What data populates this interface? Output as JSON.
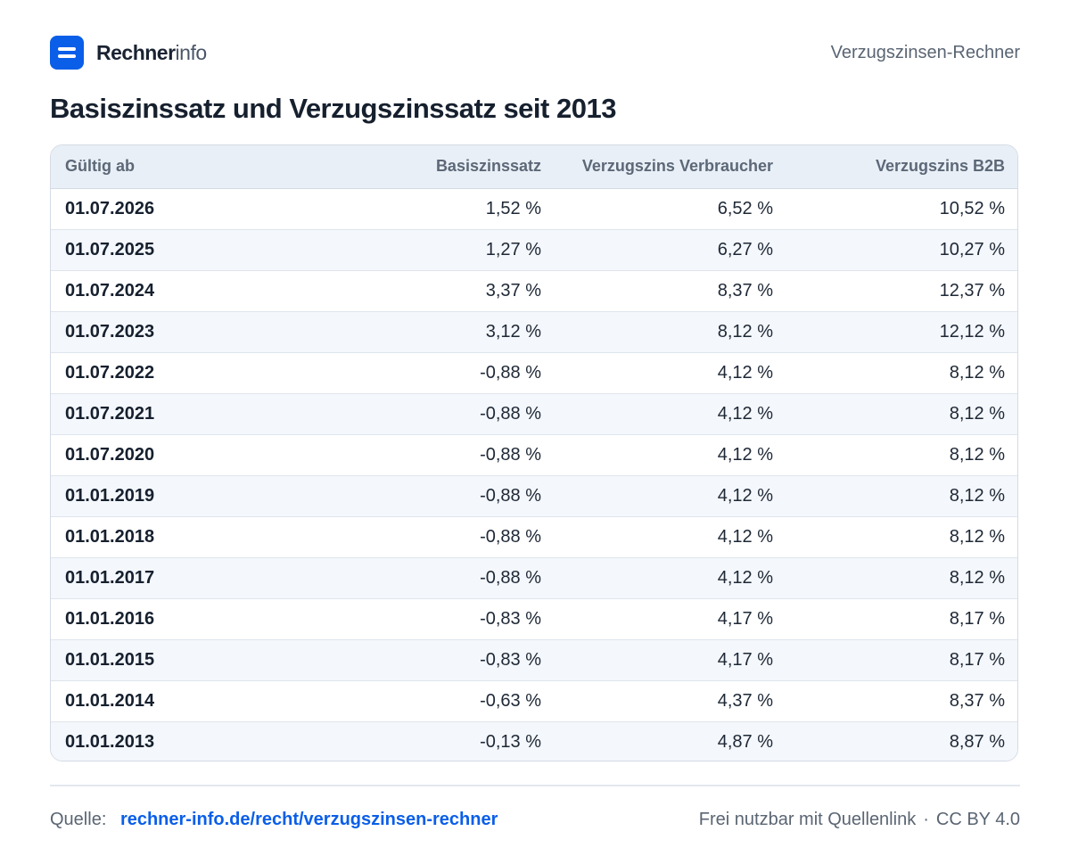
{
  "header": {
    "brand_strong": "Rechner",
    "brand_light": "info",
    "right_label": "Verzugszinsen-Rechner",
    "logo_icon": "menu-lines-icon",
    "accent_color": "#0a5ee8"
  },
  "chart_data": {
    "type": "table",
    "title": "Basiszinssatz und Verzugszinssatz seit 2013",
    "columns": [
      "Gültig ab",
      "Basiszinssatz",
      "Verzugszins Verbraucher",
      "Verzugszins B2B"
    ],
    "rows": [
      [
        "01.07.2026",
        "1,52 %",
        "6,52 %",
        "10,52 %"
      ],
      [
        "01.07.2025",
        "1,27 %",
        "6,27 %",
        "10,27 %"
      ],
      [
        "01.07.2024",
        "3,37 %",
        "8,37 %",
        "12,37 %"
      ],
      [
        "01.07.2023",
        "3,12 %",
        "8,12 %",
        "12,12 %"
      ],
      [
        "01.07.2022",
        "-0,88 %",
        "4,12 %",
        "8,12 %"
      ],
      [
        "01.07.2021",
        "-0,88 %",
        "4,12 %",
        "8,12 %"
      ],
      [
        "01.07.2020",
        "-0,88 %",
        "4,12 %",
        "8,12 %"
      ],
      [
        "01.01.2019",
        "-0,88 %",
        "4,12 %",
        "8,12 %"
      ],
      [
        "01.01.2018",
        "-0,88 %",
        "4,12 %",
        "8,12 %"
      ],
      [
        "01.01.2017",
        "-0,88 %",
        "4,12 %",
        "8,12 %"
      ],
      [
        "01.01.2016",
        "-0,83 %",
        "4,17 %",
        "8,17 %"
      ],
      [
        "01.01.2015",
        "-0,83 %",
        "4,17 %",
        "8,17 %"
      ],
      [
        "01.01.2014",
        "-0,63 %",
        "4,37 %",
        "8,37 %"
      ],
      [
        "01.01.2013",
        "-0,13 %",
        "4,87 %",
        "8,87 %"
      ]
    ]
  },
  "footer": {
    "source_label": "Quelle:",
    "source_link": "rechner-info.de/recht/verzugszinsen-rechner",
    "license_text": "Frei nutzbar mit Quellenlink",
    "separator": "·",
    "license_name": "CC BY 4.0"
  }
}
